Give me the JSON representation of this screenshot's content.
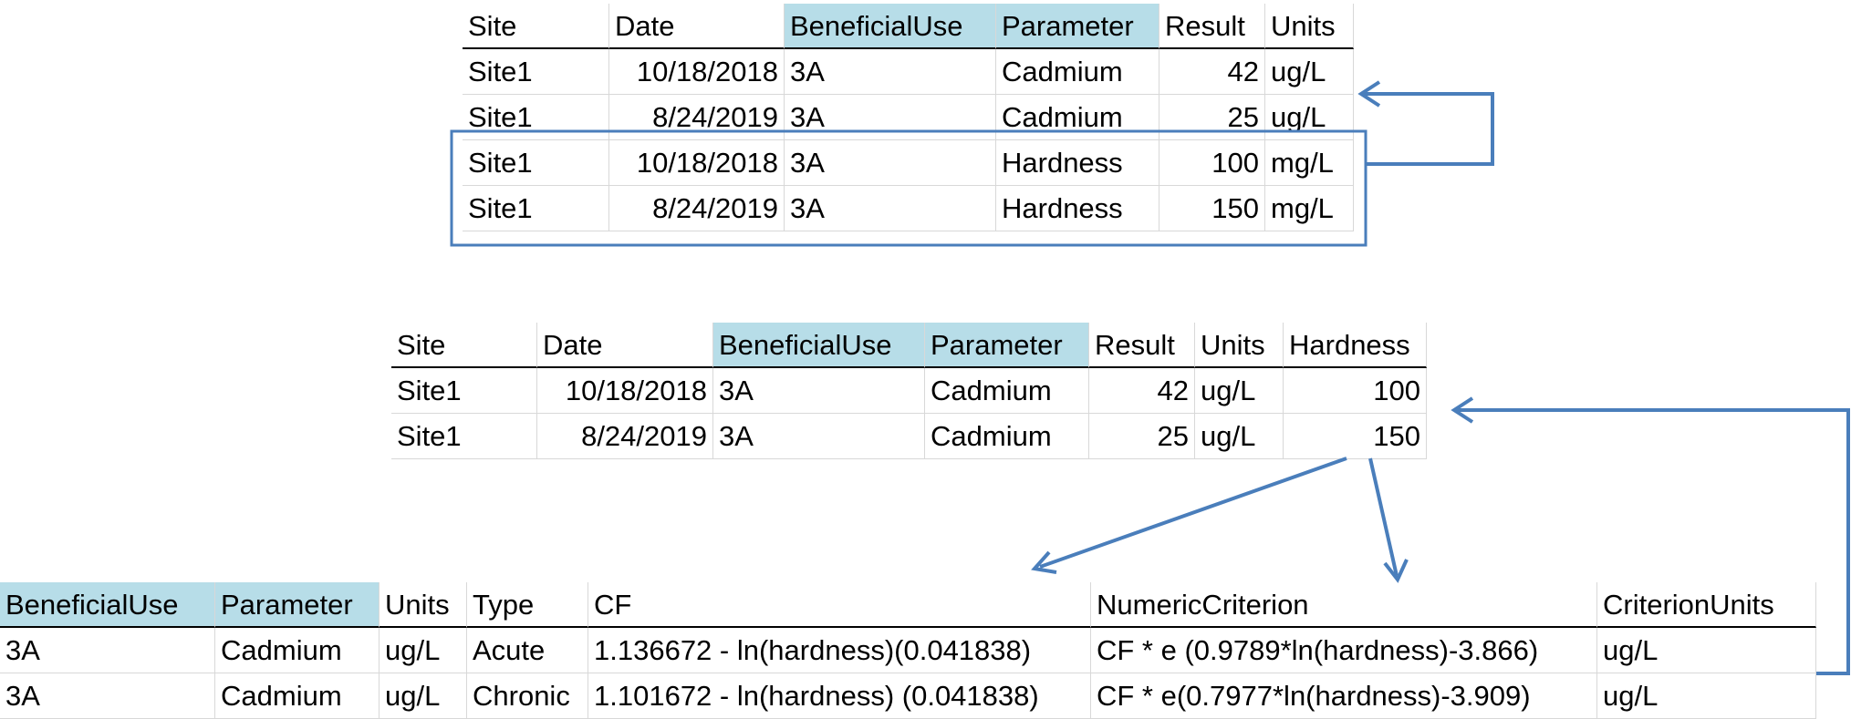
{
  "colors": {
    "highlight": "#b7dde8",
    "arrow": "#4a7ebb"
  },
  "table1": {
    "headers": [
      "Site",
      "Date",
      "BeneficialUse",
      "Parameter",
      "Result",
      "Units"
    ],
    "rows": [
      [
        "Site1",
        "10/18/2018",
        "3A",
        "Cadmium",
        "42",
        "ug/L"
      ],
      [
        "Site1",
        "8/24/2019",
        "3A",
        "Cadmium",
        "25",
        "ug/L"
      ],
      [
        "Site1",
        "10/18/2018",
        "3A",
        "Hardness",
        "100",
        "mg/L"
      ],
      [
        "Site1",
        "8/24/2019",
        "3A",
        "Hardness",
        "150",
        "mg/L"
      ]
    ]
  },
  "table2": {
    "headers": [
      "Site",
      "Date",
      "BeneficialUse",
      "Parameter",
      "Result",
      "Units",
      "Hardness"
    ],
    "rows": [
      [
        "Site1",
        "10/18/2018",
        "3A",
        "Cadmium",
        "42",
        "ug/L",
        "100"
      ],
      [
        "Site1",
        "8/24/2019",
        "3A",
        "Cadmium",
        "25",
        "ug/L",
        "150"
      ]
    ]
  },
  "table3": {
    "headers": [
      "BeneficialUse",
      "Parameter",
      "Units",
      "Type",
      "CF",
      "NumericCriterion",
      "CriterionUnits"
    ],
    "rows": [
      [
        "3A",
        "Cadmium",
        "ug/L",
        "Acute",
        "1.136672 - ln(hardness)(0.041838)",
        "CF * e (0.9789*ln(hardness)-3.866)",
        "ug/L"
      ],
      [
        "3A",
        "Cadmium",
        "ug/L",
        "Chronic",
        "1.101672 - ln(hardness) (0.041838)",
        "CF * e(0.7977*ln(hardness)-3.909)",
        "ug/L"
      ]
    ]
  }
}
